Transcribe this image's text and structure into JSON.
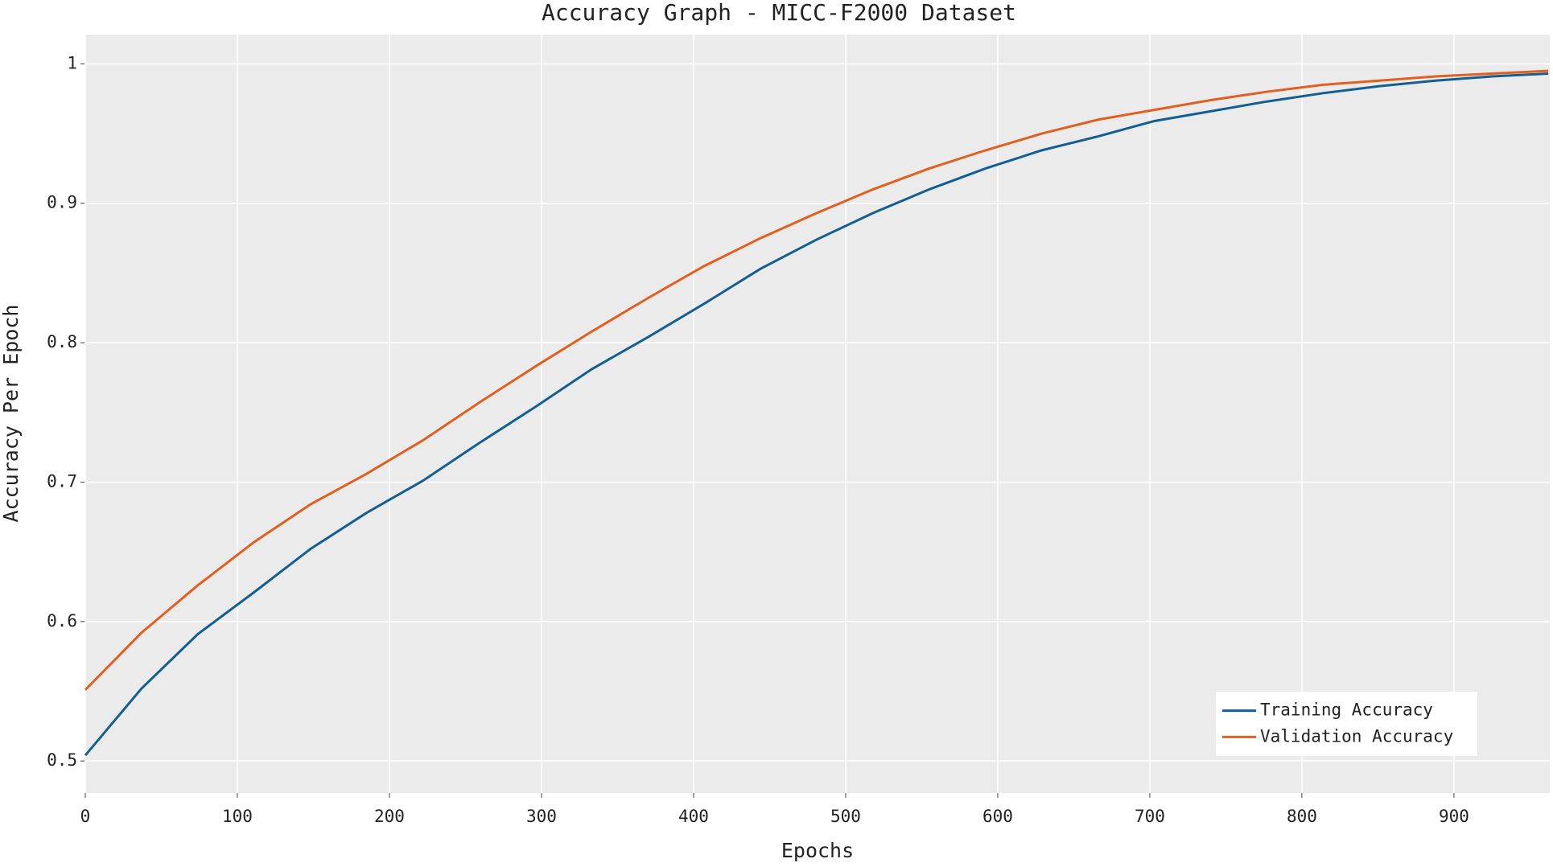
{
  "chart_data": {
    "type": "line",
    "title": "Accuracy Graph - MICC-F2000 Dataset",
    "x_label": "Epochs",
    "y_label": "Accuracy Per Epoch",
    "x": [
      0,
      37,
      74,
      111,
      148,
      185,
      222,
      259,
      296,
      333,
      370,
      407,
      444,
      481,
      518,
      555,
      592,
      629,
      666,
      703,
      740,
      777,
      814,
      851,
      888,
      925,
      962
    ],
    "series": [
      {
        "name": "Training Accuracy",
        "color": "#135f92",
        "values": [
          0.504,
          0.552,
          0.591,
          0.621,
          0.652,
          0.678,
          0.701,
          0.728,
          0.754,
          0.781,
          0.804,
          0.828,
          0.853,
          0.874,
          0.893,
          0.91,
          0.925,
          0.938,
          0.948,
          0.959,
          0.966,
          0.973,
          0.979,
          0.984,
          0.988,
          0.991,
          0.993
        ]
      },
      {
        "name": "Validation Accuracy",
        "color": "#e2601f",
        "values": [
          0.551,
          0.592,
          0.626,
          0.657,
          0.684,
          0.706,
          0.73,
          0.757,
          0.783,
          0.808,
          0.832,
          0.855,
          0.875,
          0.893,
          0.91,
          0.925,
          0.938,
          0.95,
          0.96,
          0.967,
          0.974,
          0.98,
          0.985,
          0.988,
          0.991,
          0.993,
          0.995
        ]
      }
    ],
    "xlim": [
      0,
      963
    ],
    "xticks": [
      0,
      100,
      200,
      300,
      400,
      500,
      600,
      700,
      800,
      900
    ],
    "ylim": [
      0.477,
      1.021
    ],
    "yticks": [
      0.5,
      0.6,
      0.7,
      0.8,
      0.9,
      1
    ],
    "grid": true,
    "legend": "lower right"
  }
}
